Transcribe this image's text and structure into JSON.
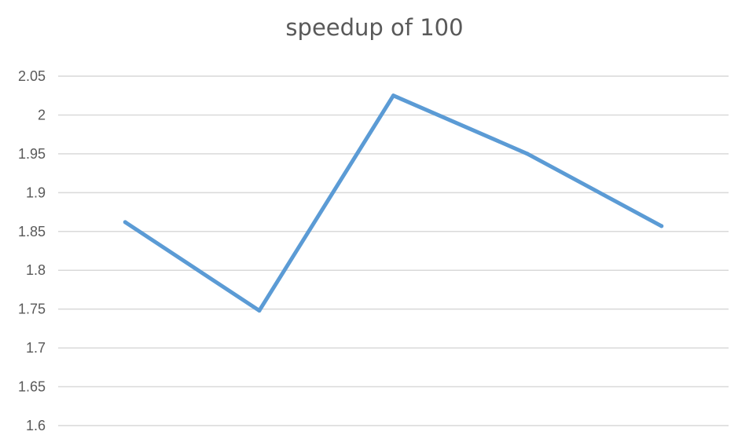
{
  "chart_data": {
    "type": "line",
    "title": "speedup of 100",
    "xlabel": "",
    "ylabel": "",
    "categories": [
      "",
      "",
      "",
      "",
      ""
    ],
    "series": [
      {
        "values": [
          1.862,
          1.748,
          2.025,
          1.95,
          1.857
        ],
        "color": "#5b9bd5"
      }
    ],
    "ylim": [
      1.6,
      2.05
    ],
    "yticks": [
      "2.05",
      "2",
      "1.95",
      "1.9",
      "1.85",
      "1.8",
      "1.75",
      "1.7",
      "1.65",
      "1.6"
    ],
    "grid": true,
    "legend": "none"
  }
}
